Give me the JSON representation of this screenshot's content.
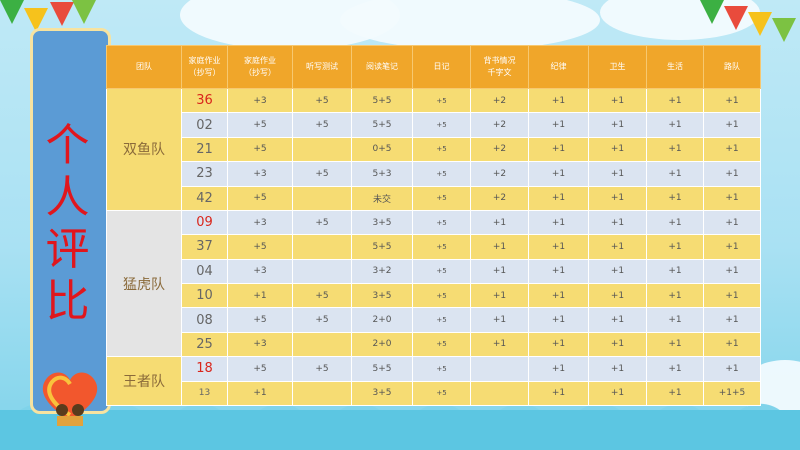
{
  "header": [
    "团队",
    "家庭作业（抄写）",
    "家庭作业（抄写）",
    "听写测试",
    "阅读笔记",
    "日记",
    "背书情况千字文",
    "纪律",
    "卫生",
    "生活",
    "路队"
  ],
  "header_lines": [
    [
      "团队"
    ],
    [
      "家庭作业",
      "（抄写）"
    ],
    [
      "家庭作业",
      "（抄写）"
    ],
    [
      "听写测试"
    ],
    [
      "阅读笔记"
    ],
    [
      "日记"
    ],
    [
      "背书情况",
      "千字文"
    ],
    [
      "纪律"
    ],
    [
      "卫生"
    ],
    [
      "生活"
    ],
    [
      "路队"
    ]
  ],
  "side_title": [
    "个",
    "人",
    "评",
    "比"
  ],
  "teams": [
    {
      "name": "双鱼队",
      "style": "yellow",
      "rows": [
        {
          "id": "36",
          "red": true,
          "cells": [
            "+3",
            "+5",
            "5+5",
            "+5",
            "+2",
            "+1",
            "+1",
            "+1",
            "+1"
          ]
        },
        {
          "id": "02",
          "cells": [
            "+5",
            "+5",
            "5+5",
            "+5",
            "+2",
            "+1",
            "+1",
            "+1",
            "+1"
          ]
        },
        {
          "id": "21",
          "cells": [
            "+5",
            "",
            "0+5",
            "+5",
            "+2",
            "+1",
            "+1",
            "+1",
            "+1"
          ]
        },
        {
          "id": "23",
          "cells": [
            "+3",
            "+5",
            "5+3",
            "+5",
            "+2",
            "+1",
            "+1",
            "+1",
            "+1"
          ]
        },
        {
          "id": "42",
          "cells": [
            "+5",
            "",
            "未交",
            "+5",
            "+2",
            "+1",
            "+1",
            "+1",
            "+1"
          ]
        }
      ]
    },
    {
      "name": "猛虎队",
      "style": "grey",
      "rows": [
        {
          "id": "09",
          "red": true,
          "cells": [
            "+3",
            "+5",
            "3+5",
            "+5",
            "+1",
            "+1",
            "+1",
            "+1",
            "+1"
          ]
        },
        {
          "id": "37",
          "cells": [
            "+5",
            "",
            "5+5",
            "+5",
            "+1",
            "+1",
            "+1",
            "+1",
            "+1"
          ]
        },
        {
          "id": "04",
          "cells": [
            "+3",
            "",
            "3+2",
            "+5",
            "+1",
            "+1",
            "+1",
            "+1",
            "+1"
          ]
        },
        {
          "id": "10",
          "cells": [
            "+1",
            "+5",
            "3+5",
            "+5",
            "+1",
            "+1",
            "+1",
            "+1",
            "+1"
          ]
        },
        {
          "id": "08",
          "cells": [
            "+5",
            "+5",
            "2+0",
            "+5",
            "+1",
            "+1",
            "+1",
            "+1",
            "+1"
          ]
        },
        {
          "id": "25",
          "cells": [
            "+3",
            "",
            "2+0",
            "+5",
            "+1",
            "+1",
            "+1",
            "+1",
            "+1"
          ]
        }
      ]
    },
    {
      "name": "王者队",
      "style": "yellow",
      "rows": [
        {
          "id": "18",
          "red": true,
          "cells": [
            "+5",
            "+5",
            "5+5",
            "+5",
            "",
            "+1",
            "+1",
            "+1",
            "+1"
          ]
        },
        {
          "id": "13",
          "small": true,
          "cells": [
            "+1",
            "",
            "3+5",
            "+5",
            "",
            "+1",
            "+1",
            "+1",
            "+1+5"
          ]
        }
      ]
    }
  ]
}
